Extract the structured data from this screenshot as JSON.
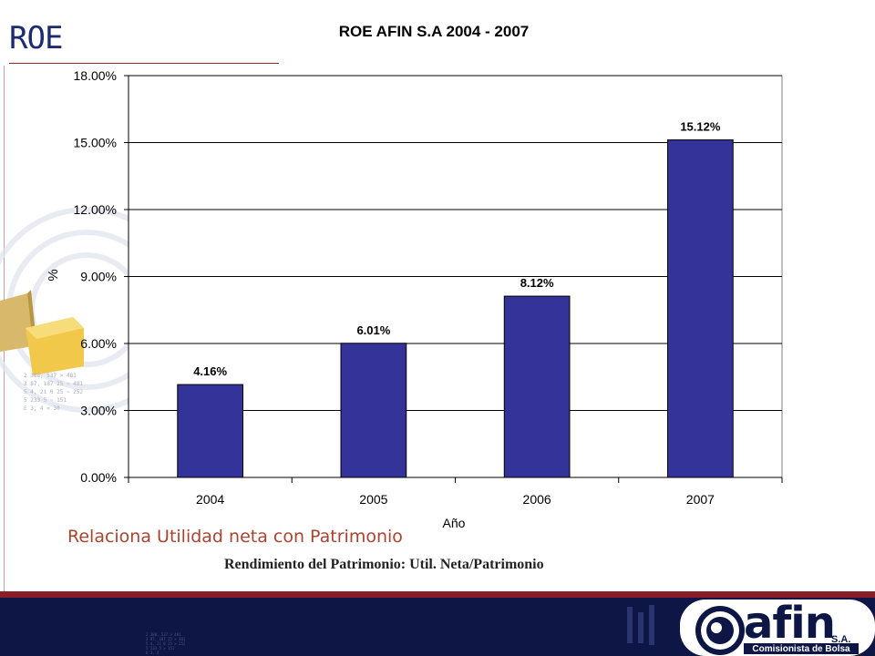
{
  "slide": {
    "title": "ROE",
    "caption_1": "Relaciona Utilidad neta con Patrimonio",
    "caption_2": "Rendimiento del Patrimonio: Util. Neta/Patrimonio"
  },
  "logo": {
    "brand": "afin",
    "suffix": "S.A.",
    "tagline": "Comisionista de Bolsa"
  },
  "colors": {
    "title": "#1c2c6e",
    "bar": "#333399",
    "accent_red": "#8a1e28",
    "footer": "#0d1645",
    "caption": "#a8442f"
  },
  "chart_data": {
    "type": "bar",
    "title": "ROE AFIN S.A 2004 - 2007",
    "xlabel": "Año",
    "ylabel": "%",
    "categories": [
      "2004",
      "2005",
      "2006",
      "2007"
    ],
    "values": [
      4.16,
      6.01,
      8.12,
      15.12
    ],
    "data_labels": [
      "4.16%",
      "6.01%",
      "8.12%",
      "15.12%"
    ],
    "ylim": [
      0,
      18
    ],
    "y_ticks": [
      0,
      3,
      6,
      9,
      12,
      15,
      18
    ],
    "y_tick_labels": [
      "0.00%",
      "3.00%",
      "6.00%",
      "9.00%",
      "12.00%",
      "15.00%",
      "18.00%"
    ],
    "grid": "horizontal",
    "legend": "none"
  }
}
